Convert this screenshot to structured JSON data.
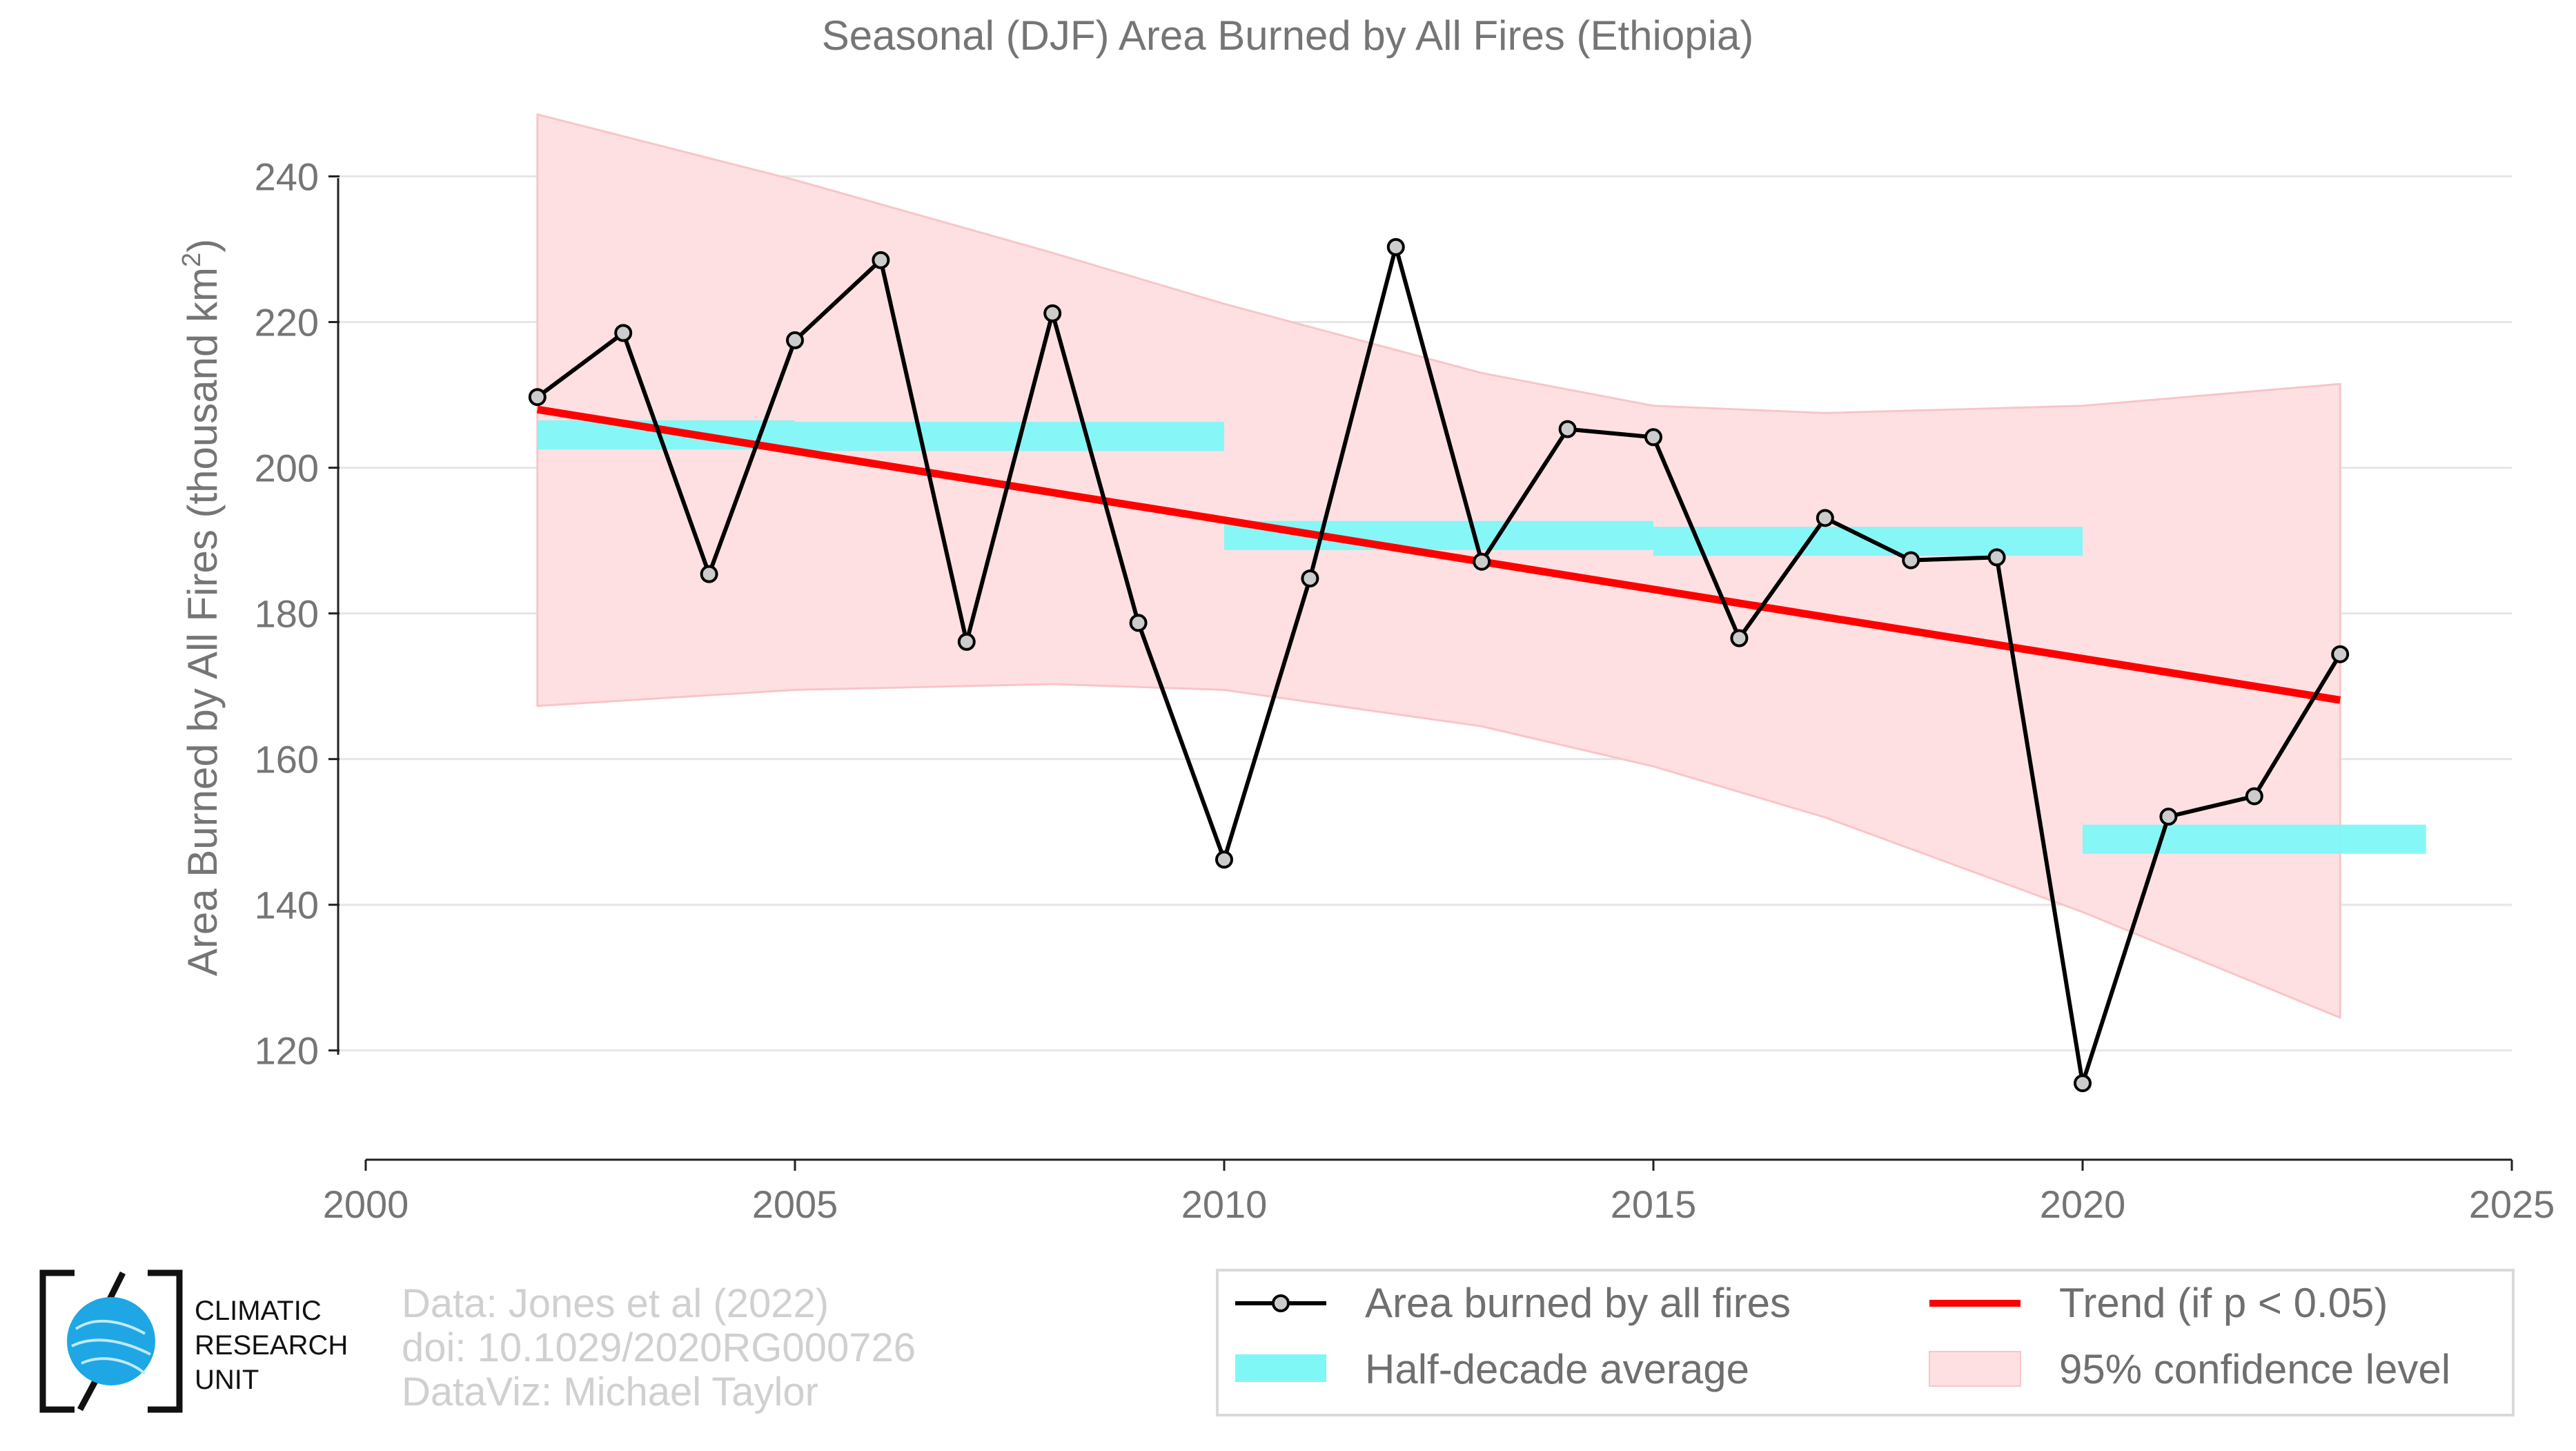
{
  "chart_data": {
    "type": "line",
    "title": "Seasonal (DJF) Area Burned by All Fires (Ethiopia)",
    "xlabel": "",
    "ylabel": "Area Burned by All Fires (thousand km",
    "ylabel_superscript": "2",
    "ylabel_suffix": ")",
    "xlim": [
      2000,
      2025
    ],
    "ylim": [
      105,
      250
    ],
    "xticks": [
      2000,
      2005,
      2010,
      2015,
      2020,
      2025
    ],
    "yticks": [
      120,
      140,
      160,
      180,
      200,
      220,
      240
    ],
    "grid": "horizontal",
    "legend_position": "bottom-right",
    "series": [
      {
        "name": "Area burned by all fires",
        "kind": "line-markers",
        "color": "#000000",
        "marker_fill": "#cccccc",
        "x": [
          2002,
          2003,
          2004,
          2005,
          2006,
          2007,
          2008,
          2009,
          2010,
          2011,
          2012,
          2013,
          2014,
          2015,
          2016,
          2017,
          2018,
          2019,
          2020,
          2021,
          2022,
          2023
        ],
        "y": [
          209.7,
          218.5,
          185.4,
          217.5,
          228.5,
          176.1,
          221.2,
          178.7,
          146.2,
          184.8,
          230.3,
          187.1,
          205.3,
          204.2,
          176.6,
          193.1,
          187.3,
          187.7,
          115.5,
          152.1,
          154.9,
          174.4
        ]
      },
      {
        "name": "Half-decade average",
        "kind": "segments",
        "color": "#7ff7f7",
        "segments": [
          {
            "x0": 2002,
            "x1": 2005,
            "y": 204.5
          },
          {
            "x0": 2005,
            "x1": 2010,
            "y": 204.3
          },
          {
            "x0": 2010,
            "x1": 2015,
            "y": 190.7
          },
          {
            "x0": 2015,
            "x1": 2020,
            "y": 189.9
          },
          {
            "x0": 2020,
            "x1": 2024,
            "y": 149.0
          }
        ]
      },
      {
        "name": "Trend (if p < 0.05)",
        "kind": "line",
        "color": "#ff0000",
        "x": [
          2002,
          2023
        ],
        "y": [
          208.0,
          168.1
        ]
      },
      {
        "name": "95% confidence level",
        "kind": "band",
        "color": "#ffe0e2",
        "edge_color": "#f8c5c8",
        "x": [
          2002,
          2005,
          2008,
          2010,
          2013,
          2015,
          2017,
          2020,
          2023
        ],
        "upper": [
          248.5,
          239.5,
          229.5,
          222.5,
          213.0,
          208.5,
          207.5,
          208.5,
          211.5
        ],
        "lower": [
          167.3,
          169.5,
          170.3,
          169.5,
          164.5,
          159.0,
          152.0,
          139.0,
          124.5
        ]
      }
    ]
  },
  "legend": {
    "items": [
      {
        "label": "Area burned by all fires"
      },
      {
        "label": "Half-decade average"
      },
      {
        "label": "Trend (if p < 0.05)"
      },
      {
        "label": "95% confidence level"
      }
    ]
  },
  "credits": {
    "line1": "Data: Jones et al (2022)",
    "line2": "doi: 10.1029/2020RG000726",
    "line3": "DataViz: Michael Taylor"
  },
  "logo": {
    "line1": "CLIMATIC",
    "line2": "RESEARCH",
    "line3": "UNIT",
    "globe_color": "#1ea7e4"
  }
}
